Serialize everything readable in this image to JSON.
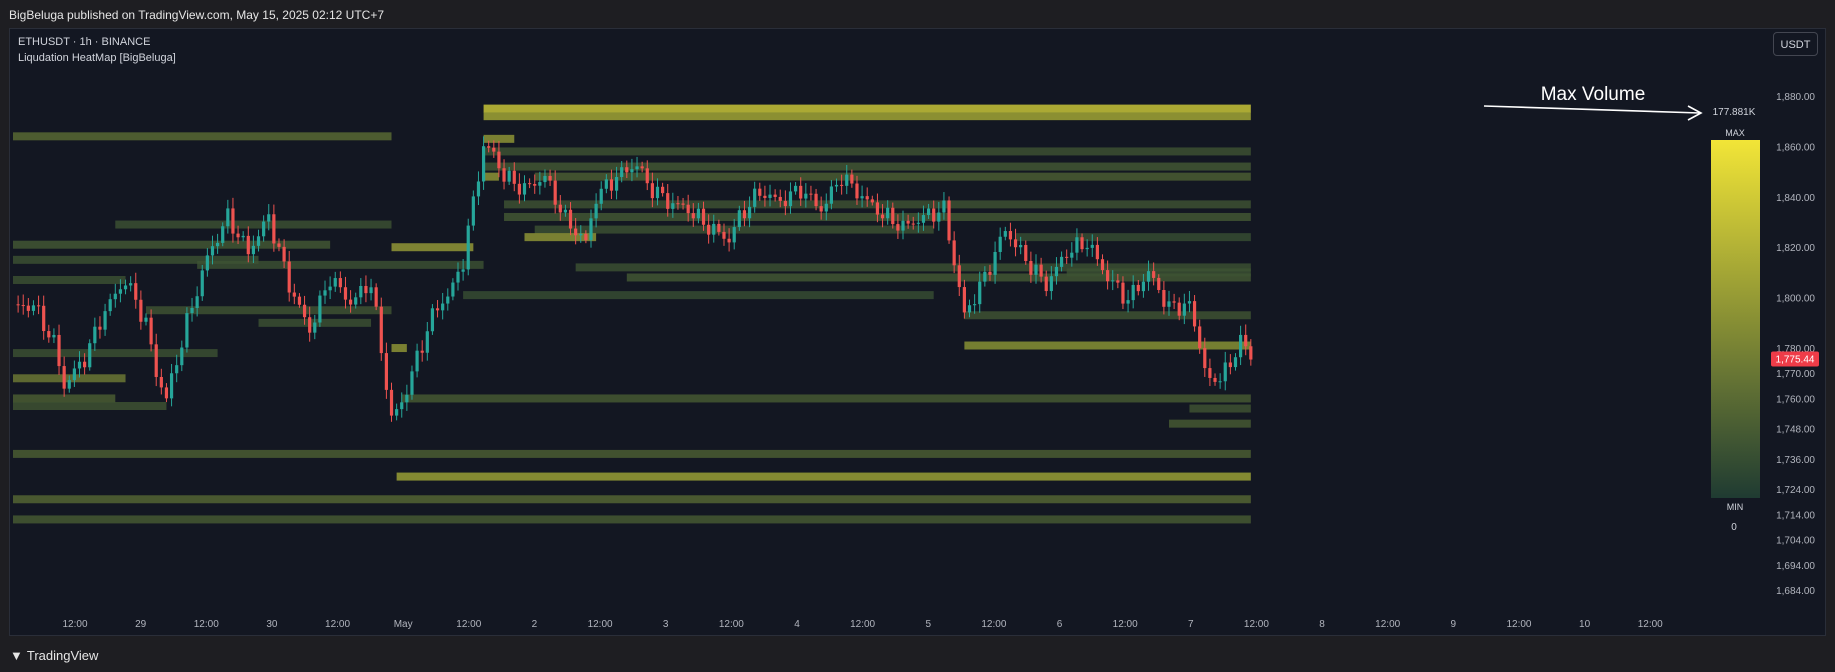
{
  "header": {
    "published": "BigBeluga published on TradingView.com, May 15, 2025 02:12 UTC+7"
  },
  "legend": {
    "symbol": "ETHUSDT · 1h · BINANCE",
    "indicator": "Liqudation HeatMap [BigBeluga]"
  },
  "currency_button": "USDT",
  "footer": {
    "brand": "TradingView",
    "logo_icon": "tradingview-logo-icon"
  },
  "annotation": {
    "text": "Max Volume",
    "icon": "arrow-right-icon"
  },
  "colorbar": {
    "max_label": "MAX",
    "min_label": "MIN",
    "max_value": "177.881K",
    "min_value": "0",
    "color_low": "#1f3b32",
    "color_high": "#f2e537"
  },
  "colors": {
    "up": "#26a69a",
    "down": "#ef5350",
    "price_tag": "#ef3c48",
    "background": "#131722"
  },
  "chart_data": {
    "type": "candlestick",
    "y_ticks": [
      "1,880.00",
      "1,860.00",
      "1,840.00",
      "1,820.00",
      "1,800.00",
      "1,780.00",
      "1,770.00",
      "1,760.00",
      "1,748.00",
      "1,736.00",
      "1,724.00",
      "1,714.00",
      "1,704.00",
      "1,694.00",
      "1,684.00"
    ],
    "y_tick_values": [
      1880,
      1860,
      1840,
      1820,
      1800,
      1780,
      1770,
      1760,
      1748,
      1736,
      1724,
      1714,
      1704,
      1694,
      1684
    ],
    "x_ticks": [
      "12:00",
      "29",
      "12:00",
      "30",
      "12:00",
      "May",
      "12:00",
      "2",
      "12:00",
      "3",
      "12:00",
      "4",
      "12:00",
      "5",
      "12:00",
      "6",
      "12:00",
      "7",
      "12:00",
      "8",
      "12:00",
      "9",
      "12:00",
      "10",
      "12:00"
    ],
    "x_tick_hours": [
      0,
      12,
      24,
      36,
      48,
      60,
      72,
      84,
      96,
      108,
      120,
      132,
      144,
      156,
      168,
      180,
      192,
      204,
      216,
      228,
      240,
      252,
      264,
      276,
      288
    ],
    "last_price": {
      "label": "1,775.44",
      "value": 1775.44
    },
    "anchors": [
      [
        0,
        1796
      ],
      [
        4,
        1797
      ],
      [
        8,
        1782
      ],
      [
        10,
        1765
      ],
      [
        14,
        1776
      ],
      [
        18,
        1795
      ],
      [
        22,
        1807
      ],
      [
        26,
        1790
      ],
      [
        28,
        1770
      ],
      [
        30,
        1760
      ],
      [
        34,
        1790
      ],
      [
        38,
        1816
      ],
      [
        42,
        1832
      ],
      [
        46,
        1818
      ],
      [
        50,
        1832
      ],
      [
        54,
        1805
      ],
      [
        58,
        1787
      ],
      [
        62,
        1808
      ],
      [
        66,
        1798
      ],
      [
        70,
        1806
      ],
      [
        74,
        1752
      ],
      [
        76,
        1758
      ],
      [
        78,
        1770
      ],
      [
        82,
        1793
      ],
      [
        86,
        1804
      ],
      [
        88,
        1815
      ],
      [
        90,
        1838
      ],
      [
        92,
        1860
      ],
      [
        94,
        1857
      ],
      [
        96,
        1848
      ],
      [
        100,
        1843
      ],
      [
        104,
        1848
      ],
      [
        108,
        1831
      ],
      [
        112,
        1822
      ],
      [
        114,
        1840
      ],
      [
        118,
        1848
      ],
      [
        122,
        1853
      ],
      [
        124,
        1845
      ],
      [
        128,
        1838
      ],
      [
        132,
        1835
      ],
      [
        136,
        1828
      ],
      [
        140,
        1823
      ],
      [
        142,
        1832
      ],
      [
        146,
        1842
      ],
      [
        150,
        1838
      ],
      [
        154,
        1843
      ],
      [
        158,
        1835
      ],
      [
        162,
        1848
      ],
      [
        166,
        1840
      ],
      [
        170,
        1833
      ],
      [
        174,
        1828
      ],
      [
        178,
        1832
      ],
      [
        182,
        1835
      ],
      [
        186,
        1793
      ],
      [
        190,
        1808
      ],
      [
        194,
        1827
      ],
      [
        198,
        1815
      ],
      [
        202,
        1805
      ],
      [
        206,
        1818
      ],
      [
        210,
        1822
      ],
      [
        214,
        1808
      ],
      [
        218,
        1799
      ],
      [
        222,
        1810
      ],
      [
        226,
        1796
      ],
      [
        230,
        1797
      ],
      [
        234,
        1765
      ],
      [
        236,
        1770
      ],
      [
        238,
        1772
      ],
      [
        240,
        1785
      ],
      [
        242,
        1775
      ]
    ],
    "heatmap": [
      {
        "start": 0,
        "end": 74,
        "price": 1864,
        "intensity": 0.28
      },
      {
        "start": 0,
        "end": 62,
        "price": 1821,
        "intensity": 0.18
      },
      {
        "start": 0,
        "end": 48,
        "price": 1815,
        "intensity": 0.14
      },
      {
        "start": 0,
        "end": 22,
        "price": 1807,
        "intensity": 0.14
      },
      {
        "start": 0,
        "end": 40,
        "price": 1778,
        "intensity": 0.14
      },
      {
        "start": 0,
        "end": 22,
        "price": 1768,
        "intensity": 0.36
      },
      {
        "start": 0,
        "end": 20,
        "price": 1760,
        "intensity": 0.22
      },
      {
        "start": 0,
        "end": 30,
        "price": 1757,
        "intensity": 0.16
      },
      {
        "start": 0,
        "end": 242,
        "price": 1738,
        "intensity": 0.22
      },
      {
        "start": 0,
        "end": 242,
        "price": 1720,
        "intensity": 0.26
      },
      {
        "start": 0,
        "end": 242,
        "price": 1712,
        "intensity": 0.2
      },
      {
        "start": 20,
        "end": 74,
        "price": 1829,
        "intensity": 0.14
      },
      {
        "start": 26,
        "end": 74,
        "price": 1795,
        "intensity": 0.16
      },
      {
        "start": 36,
        "end": 92,
        "price": 1813,
        "intensity": 0.14
      },
      {
        "start": 48,
        "end": 70,
        "price": 1790,
        "intensity": 0.14
      },
      {
        "start": 74,
        "end": 90,
        "price": 1820,
        "intensity": 0.52
      },
      {
        "start": 74,
        "end": 77,
        "price": 1780,
        "intensity": 0.5
      },
      {
        "start": 75,
        "end": 242,
        "price": 1729,
        "intensity": 0.55
      },
      {
        "start": 76,
        "end": 242,
        "price": 1760,
        "intensity": 0.2
      },
      {
        "start": 92,
        "end": 242,
        "price": 1875,
        "intensity": 0.72
      },
      {
        "start": 92,
        "end": 242,
        "price": 1872,
        "intensity": 0.58
      },
      {
        "start": 92,
        "end": 242,
        "price": 1858,
        "intensity": 0.15
      },
      {
        "start": 92,
        "end": 242,
        "price": 1852,
        "intensity": 0.18
      },
      {
        "start": 96,
        "end": 242,
        "price": 1837,
        "intensity": 0.15
      },
      {
        "start": 96,
        "end": 242,
        "price": 1832,
        "intensity": 0.18
      },
      {
        "start": 92,
        "end": 98,
        "price": 1863,
        "intensity": 0.5
      },
      {
        "start": 92,
        "end": 95,
        "price": 1848,
        "intensity": 0.5
      },
      {
        "start": 102,
        "end": 242,
        "price": 1848,
        "intensity": 0.22
      },
      {
        "start": 102,
        "end": 180,
        "price": 1827,
        "intensity": 0.14
      },
      {
        "start": 100,
        "end": 114,
        "price": 1824,
        "intensity": 0.5
      },
      {
        "start": 110,
        "end": 242,
        "price": 1812,
        "intensity": 0.14
      },
      {
        "start": 120,
        "end": 242,
        "price": 1808,
        "intensity": 0.18
      },
      {
        "start": 88,
        "end": 180,
        "price": 1801,
        "intensity": 0.12
      },
      {
        "start": 186,
        "end": 242,
        "price": 1781,
        "intensity": 0.48
      },
      {
        "start": 186,
        "end": 242,
        "price": 1793,
        "intensity": 0.16
      },
      {
        "start": 196,
        "end": 242,
        "price": 1824,
        "intensity": 0.12
      },
      {
        "start": 206,
        "end": 242,
        "price": 1810,
        "intensity": 0.14
      },
      {
        "start": 226,
        "end": 242,
        "price": 1750,
        "intensity": 0.2
      },
      {
        "start": 230,
        "end": 242,
        "price": 1756,
        "intensity": 0.16
      }
    ]
  }
}
